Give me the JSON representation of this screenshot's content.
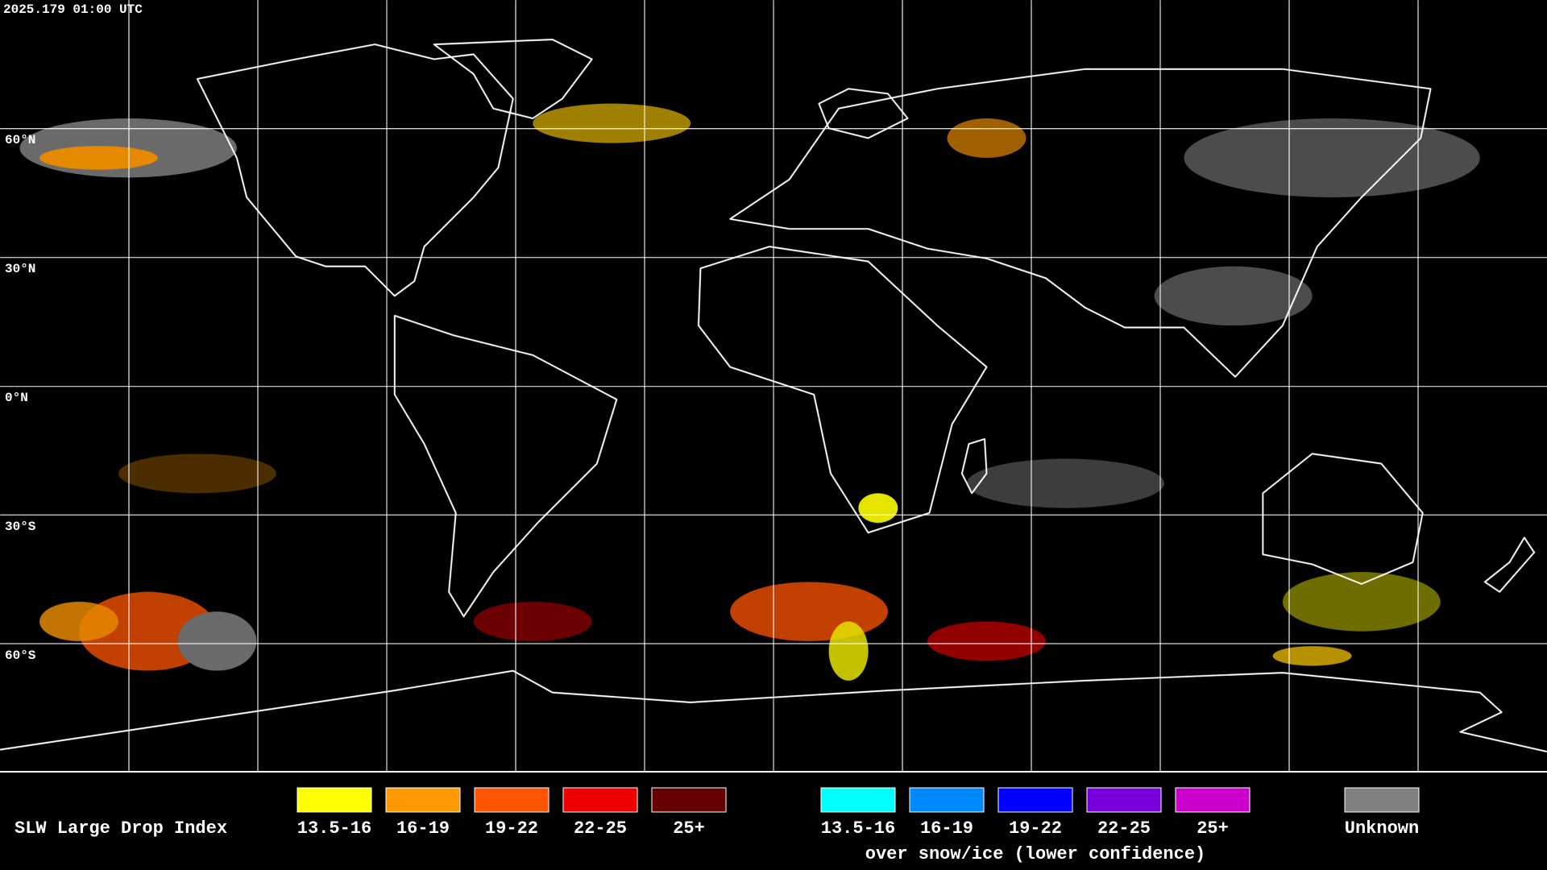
{
  "timestamp": "2025.179 01:00 UTC",
  "latitude_labels": [
    "60°N",
    "30°N",
    "0°N",
    "30°S",
    "60°S"
  ],
  "legend": {
    "title": "SLW Large Drop Index",
    "groups": [
      {
        "items": [
          {
            "label": "13.5-16",
            "color": "#ffff00"
          },
          {
            "label": "16-19",
            "color": "#ff9900"
          },
          {
            "label": "19-22",
            "color": "#ff5500"
          },
          {
            "label": "22-25",
            "color": "#ee0000"
          },
          {
            "label": "25+",
            "color": "#660000"
          }
        ]
      },
      {
        "items": [
          {
            "label": "13.5-16",
            "color": "#00ffff"
          },
          {
            "label": "16-19",
            "color": "#0088ff"
          },
          {
            "label": "19-22",
            "color": "#0000ff"
          },
          {
            "label": "22-25",
            "color": "#7700dd"
          },
          {
            "label": "25+",
            "color": "#cc00cc"
          }
        ],
        "caption": "over snow/ice (lower confidence)"
      },
      {
        "items": [
          {
            "label": "Unknown",
            "color": "#808080"
          }
        ]
      }
    ]
  }
}
